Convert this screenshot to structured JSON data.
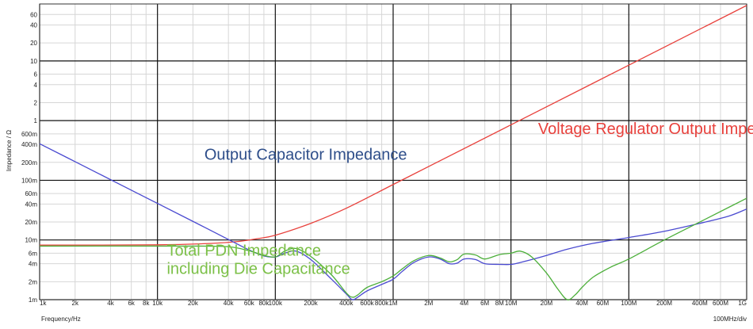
{
  "chart_data": {
    "type": "line",
    "title": "",
    "xlabel": "Frequency/Hz",
    "ylabel": "Impedance / Ω",
    "xscale_note": "100MHz/div",
    "xscale": "log",
    "yscale": "log",
    "xlim": [
      1000,
      1000000000
    ],
    "ylim": [
      0.001,
      90
    ],
    "grid": true,
    "x_major_ticks": [
      {
        "value": 1000,
        "label": "1k"
      },
      {
        "value": 10000,
        "label": "10k"
      },
      {
        "value": 100000,
        "label": "100k"
      },
      {
        "value": 1000000,
        "label": "1M"
      },
      {
        "value": 10000000,
        "label": "10M"
      },
      {
        "value": 100000000,
        "label": "100M"
      },
      {
        "value": 1000000000,
        "label": "1G"
      }
    ],
    "x_minor_ticks": [
      {
        "value": 2000,
        "label": "2k"
      },
      {
        "value": 4000,
        "label": "4k"
      },
      {
        "value": 6000,
        "label": "6k"
      },
      {
        "value": 8000,
        "label": "8k"
      },
      {
        "value": 20000,
        "label": "20k"
      },
      {
        "value": 40000,
        "label": "40k"
      },
      {
        "value": 60000,
        "label": "60k"
      },
      {
        "value": 80000,
        "label": "80k"
      },
      {
        "value": 200000,
        "label": "200k"
      },
      {
        "value": 400000,
        "label": "400k"
      },
      {
        "value": 600000,
        "label": "600k"
      },
      {
        "value": 800000,
        "label": "800k"
      },
      {
        "value": 2000000,
        "label": "2M"
      },
      {
        "value": 4000000,
        "label": "4M"
      },
      {
        "value": 6000000,
        "label": "6M"
      },
      {
        "value": 8000000,
        "label": "8M"
      },
      {
        "value": 20000000,
        "label": "20M"
      },
      {
        "value": 40000000,
        "label": "40M"
      },
      {
        "value": 60000000,
        "label": "60M"
      },
      {
        "value": 200000000,
        "label": "200M"
      },
      {
        "value": 400000000,
        "label": "400M"
      },
      {
        "value": 600000000,
        "label": "600M"
      }
    ],
    "y_major_ticks": [
      {
        "value": 0.001,
        "label": "1m"
      },
      {
        "value": 0.01,
        "label": "10m"
      },
      {
        "value": 0.1,
        "label": "100m"
      },
      {
        "value": 1,
        "label": "1"
      },
      {
        "value": 10,
        "label": "10"
      }
    ],
    "y_minor_ticks": [
      {
        "value": 0.002,
        "label": "2m"
      },
      {
        "value": 0.004,
        "label": "4m"
      },
      {
        "value": 0.006,
        "label": "6m"
      },
      {
        "value": 0.02,
        "label": "20m"
      },
      {
        "value": 0.04,
        "label": "40m"
      },
      {
        "value": 0.06,
        "label": "60m"
      },
      {
        "value": 0.2,
        "label": "200m"
      },
      {
        "value": 0.4,
        "label": "400m"
      },
      {
        "value": 0.6,
        "label": "600m"
      },
      {
        "value": 2,
        "label": "2"
      },
      {
        "value": 4,
        "label": "4"
      },
      {
        "value": 6,
        "label": "6"
      },
      {
        "value": 20,
        "label": "20"
      },
      {
        "value": 40,
        "label": "40"
      },
      {
        "value": 60,
        "label": "60"
      }
    ],
    "series": [
      {
        "name": "Voltage Regulator Output Impedance",
        "color": "#e8413c",
        "points": [
          [
            1000,
            0.0082
          ],
          [
            10000,
            0.0083
          ],
          [
            30000,
            0.0088
          ],
          [
            50000,
            0.0095
          ],
          [
            70000,
            0.0105
          ],
          [
            100000,
            0.012
          ],
          [
            200000,
            0.019
          ],
          [
            400000,
            0.034
          ],
          [
            1000000,
            0.085
          ],
          [
            2000000,
            0.17
          ],
          [
            10000000,
            0.85
          ],
          [
            100000000,
            8.5
          ],
          [
            1000000000,
            85
          ]
        ]
      },
      {
        "name": "Output Capacitor Impedance",
        "color": "#4a4ad0",
        "points": [
          [
            1000,
            0.41
          ],
          [
            2000,
            0.205
          ],
          [
            5000,
            0.082
          ],
          [
            10000,
            0.041
          ],
          [
            20000,
            0.0205
          ],
          [
            40000,
            0.0102
          ],
          [
            60000,
            0.0068
          ],
          [
            80000,
            0.0054
          ],
          [
            100000,
            0.0052
          ],
          [
            120000,
            0.006
          ],
          [
            150000,
            0.0065
          ],
          [
            200000,
            0.0047
          ],
          [
            300000,
            0.0022
          ],
          [
            400000,
            0.00125
          ],
          [
            450000,
            0.001
          ],
          [
            500000,
            0.0011
          ],
          [
            600000,
            0.0014
          ],
          [
            800000,
            0.0018
          ],
          [
            1000000,
            0.0022
          ],
          [
            1200000,
            0.003
          ],
          [
            1500000,
            0.0042
          ],
          [
            2000000,
            0.0052
          ],
          [
            2500000,
            0.0048
          ],
          [
            3000000,
            0.004
          ],
          [
            3500000,
            0.0041
          ],
          [
            4000000,
            0.0048
          ],
          [
            5000000,
            0.0047
          ],
          [
            6000000,
            0.004
          ],
          [
            8000000,
            0.0039
          ],
          [
            10000000,
            0.0039
          ],
          [
            12000000,
            0.0042
          ],
          [
            15000000,
            0.0047
          ],
          [
            20000000,
            0.0055
          ],
          [
            30000000,
            0.007
          ],
          [
            50000000,
            0.0088
          ],
          [
            100000000,
            0.011
          ],
          [
            200000000,
            0.014
          ],
          [
            400000000,
            0.019
          ],
          [
            700000000,
            0.025
          ],
          [
            1000000000,
            0.033
          ]
        ]
      },
      {
        "name": "Total PDN Impedance including Die Capacitance",
        "color": "#4caf3a",
        "points": [
          [
            1000,
            0.0079
          ],
          [
            20000,
            0.0079
          ],
          [
            40000,
            0.0077
          ],
          [
            60000,
            0.0066
          ],
          [
            80000,
            0.0055
          ],
          [
            100000,
            0.0052
          ],
          [
            120000,
            0.0065
          ],
          [
            150000,
            0.0072
          ],
          [
            200000,
            0.0053
          ],
          [
            300000,
            0.0026
          ],
          [
            400000,
            0.0013
          ],
          [
            450000,
            0.0011
          ],
          [
            500000,
            0.0012
          ],
          [
            600000,
            0.0016
          ],
          [
            800000,
            0.002
          ],
          [
            1000000,
            0.0025
          ],
          [
            1200000,
            0.0033
          ],
          [
            1500000,
            0.0045
          ],
          [
            2000000,
            0.0055
          ],
          [
            2500000,
            0.005
          ],
          [
            3000000,
            0.0043
          ],
          [
            3500000,
            0.0047
          ],
          [
            4000000,
            0.0058
          ],
          [
            5000000,
            0.0056
          ],
          [
            6000000,
            0.0048
          ],
          [
            8000000,
            0.0057
          ],
          [
            10000000,
            0.006
          ],
          [
            12000000,
            0.0065
          ],
          [
            15000000,
            0.0052
          ],
          [
            20000000,
            0.0028
          ],
          [
            25000000,
            0.0015
          ],
          [
            30000000,
            0.001
          ],
          [
            35000000,
            0.0012
          ],
          [
            40000000,
            0.0016
          ],
          [
            50000000,
            0.0024
          ],
          [
            70000000,
            0.0035
          ],
          [
            100000000,
            0.0048
          ],
          [
            200000000,
            0.01
          ],
          [
            400000000,
            0.02
          ],
          [
            700000000,
            0.035
          ],
          [
            1000000000,
            0.05
          ]
        ]
      }
    ],
    "annotations": [
      {
        "text": "Voltage Regulator Output Impedance",
        "color": "#e8413c",
        "x": 17000000,
        "y": 0.6
      },
      {
        "text": "Output Capacitor Impedance",
        "color": "#2e4e8a",
        "x": 25000,
        "y": 0.22
      },
      {
        "text": "Total PDN Impedance",
        "color": "#7cc048",
        "x": 12000,
        "y": 0.0055
      },
      {
        "text": "including Die Capacitance",
        "color": "#7cc048",
        "x": 12000,
        "y": 0.0027
      }
    ]
  }
}
